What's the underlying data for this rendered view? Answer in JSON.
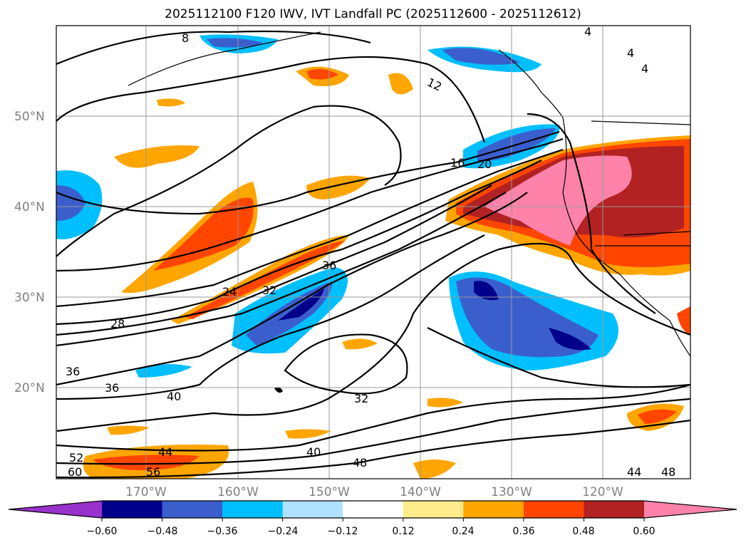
{
  "title": "2025112100 F120 IWV, IVT Landfall PC (2025112600 - 2025112612)",
  "map": {
    "lat_labels": [
      "50°N",
      "40°N",
      "30°N",
      "20°N"
    ],
    "lon_labels": [
      "170°W",
      "160°W",
      "150°W",
      "140°W",
      "130°W",
      "120°W"
    ],
    "contour_labels": [
      "8",
      "12",
      "16",
      "20",
      "24",
      "28",
      "32",
      "36",
      "36",
      "36",
      "40",
      "40",
      "44",
      "48",
      "52",
      "56",
      "60",
      "44",
      "48",
      "32",
      "4",
      "4",
      "4"
    ]
  },
  "colorbar": {
    "ticks": [
      "−0.60",
      "−0.48",
      "−0.36",
      "−0.24",
      "−0.12",
      "0.12",
      "0.24",
      "0.36",
      "0.48",
      "0.60"
    ],
    "colors": [
      "#9932cc",
      "#00008b",
      "#3a5fcd",
      "#00bfff",
      "#b0e2ff",
      "#ffffff",
      "#ffec8b",
      "#ffa500",
      "#ff4500",
      "#b22222",
      "#ff82ab"
    ]
  }
}
